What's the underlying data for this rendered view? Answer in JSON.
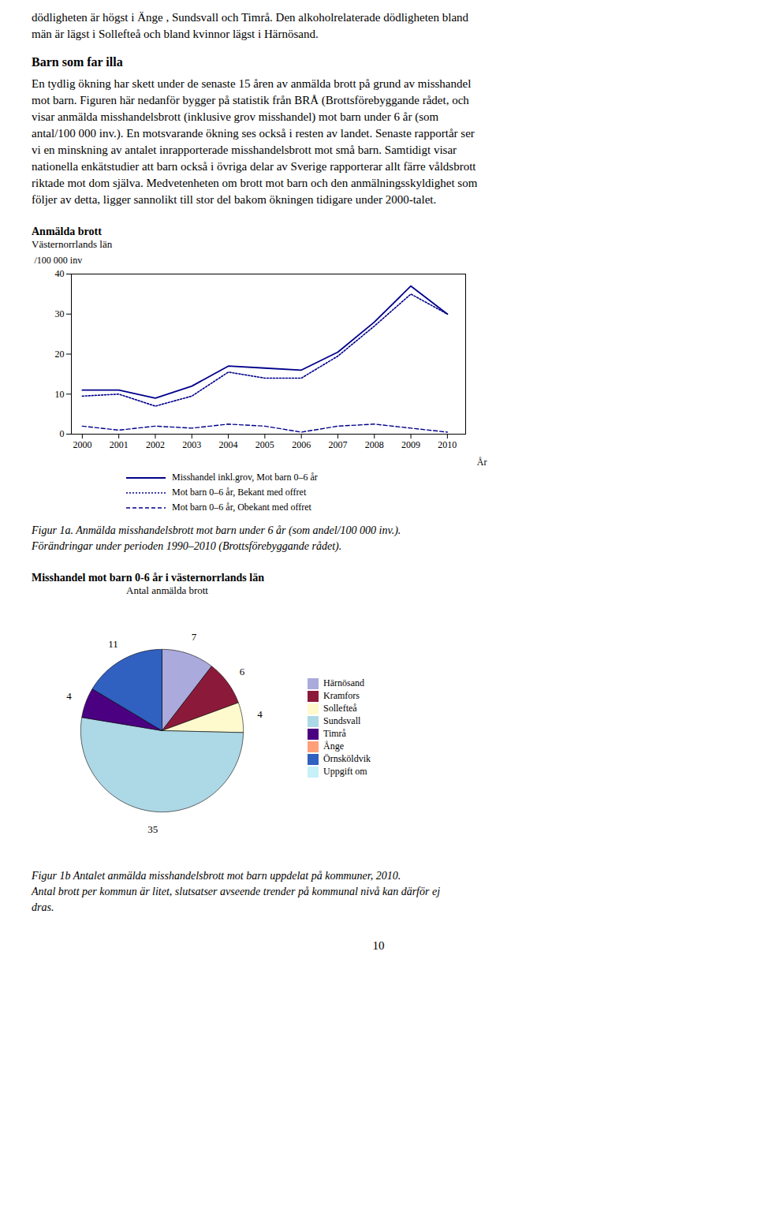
{
  "page_text": {
    "lines_before": [
      "dödligheten är högst i Änge , Sundsvall och Timrå. Den alkoholrelaterade dödligheten bland",
      "män är lägst i Sollefteå och bland kvinnor lägst i Härnösand."
    ],
    "heading": "Barn som far illa",
    "body": [
      "En tydlig ökning har skett under de senaste 15 åren av anmälda brott på grund av misshandel",
      "mot barn. Figuren här nedanför bygger på statistik från BRÅ (Brottsförebyggande rådet, och",
      "visar anmälda misshandelsbrott (inklusive grov misshandel) mot barn under 6 år (som",
      "antal/100 000 inv.). En motsvarande ökning ses också i resten av landet.  Senaste rapportår ser",
      "vi en minskning av antalet inrapporterade misshandelsbrott mot små barn. Samtidigt visar",
      "nationella enkätstudier att barn också i övriga delar av Sverige rapporterar allt färre våldsbrott",
      "riktade mot dom själva. Medvetenheten om brott mot barn och den anmälningsskyldighet som",
      "följer av detta, ligger sannolikt till stor del bakom ökningen tidigare under 2000-talet."
    ],
    "page_number": "10"
  },
  "chart_data": [
    {
      "type": "line",
      "title": "Anmälda brott",
      "subtitle": "Västernorrlands län",
      "xlabel": "År",
      "ylabel": "/100 000 inv",
      "x": [
        2000,
        2001,
        2002,
        2003,
        2004,
        2005,
        2006,
        2007,
        2008,
        2009,
        2010
      ],
      "series": [
        {
          "name": "Misshandel inkl.grov, Mot barn 0–6 år",
          "color": "#00008B",
          "line_style": "solid",
          "values": [
            11.0,
            11.0,
            9.0,
            12.0,
            17.0,
            16.5,
            16.0,
            20.5,
            28.0,
            37.0,
            30.0
          ]
        },
        {
          "name": "Mot barn 0–6 år, Bekant med offret",
          "color": "#00008B",
          "line_style": "dotted",
          "values": [
            9.5,
            10.0,
            7.0,
            9.5,
            15.5,
            14.0,
            14.0,
            19.5,
            27.0,
            35.0,
            30.0
          ]
        },
        {
          "name": "Mot barn 0–6 år, Obekant med offret",
          "color": "#00008B",
          "line_style": "dashed",
          "values": [
            2.0,
            1.0,
            2.0,
            1.5,
            2.5,
            2.0,
            0.5,
            2.0,
            2.5,
            1.5,
            0.5
          ]
        }
      ],
      "xlim": [
        1999.7,
        2010.5
      ],
      "xticks": [
        2000,
        2001,
        2002,
        2003,
        2004,
        2005,
        2006,
        2007,
        2008,
        2009,
        2010
      ],
      "ylim": [
        0,
        40
      ],
      "yticks": [
        0,
        10,
        20,
        30,
        40
      ],
      "legend": "bottom",
      "caption": [
        "Figur 1a. Anmälda misshandelsbrott mot barn under 6 år (som andel/100 000 inv.).",
        "Förändringar under perioden 1990–2010 (Brottsförebyggande rådet)."
      ]
    },
    {
      "type": "pie",
      "title": "Misshandel mot barn 0-6 år i västernorrlands län",
      "subtitle": "Antal anmälda brott",
      "categories": [
        "Härnösand",
        "Kramfors",
        "Sollefteå",
        "Sundsvall",
        "Timrå",
        "Ånge",
        "Örnsköldvik",
        "Uppgift om"
      ],
      "values": [
        7,
        6,
        4,
        35,
        4,
        0,
        11,
        0
      ],
      "colors": [
        "#AAAADD",
        "#8B1A3A",
        "#FFFACD",
        "#ADD8E6",
        "#4B0082",
        "#FFA07A",
        "#3060C0",
        "#C8F0F8"
      ],
      "data_labels": true,
      "legend": "right",
      "caption": [
        "Figur 1b Antalet anmälda misshandelsbrott mot barn uppdelat på kommuner, 2010.",
        "Antal brott per kommun är litet, slutsatser avseende trender på kommunal nivå kan därför ej",
        "dras."
      ]
    }
  ]
}
